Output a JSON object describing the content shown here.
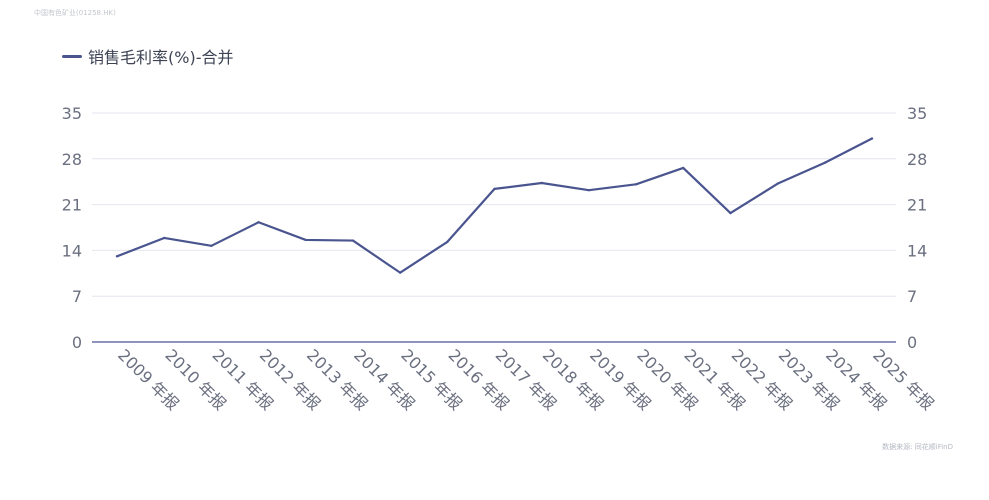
{
  "watermark_top": "中国有色矿业(01258.HK)",
  "watermark_bottom": "数据来源: 同花顺iFinD",
  "chart_data": {
    "type": "line",
    "legend_position": "top-left",
    "grid": true,
    "colors": {
      "line": "#4a5590",
      "grid": "#e3e6f0",
      "axis": "#4a5590"
    },
    "categories": [
      "2009 年报",
      "2010 年报",
      "2011 年报",
      "2012 年报",
      "2013 年报",
      "2014 年报",
      "2015 年报",
      "2016 年报",
      "2017 年报",
      "2018 年报",
      "2019 年报",
      "2020 年报",
      "2021 年报",
      "2022 年报",
      "2023 年报",
      "2024 年报",
      "2025 年报"
    ],
    "series": [
      {
        "name": "销售毛利率(%)-合并",
        "values": [
          13.1,
          15.9,
          14.7,
          18.3,
          15.6,
          15.5,
          10.6,
          15.3,
          23.4,
          24.3,
          23.2,
          24.1,
          26.6,
          19.7,
          24.2,
          27.4,
          31.1
        ]
      }
    ],
    "ylim": [
      0,
      35
    ],
    "yticks": [
      "0",
      "7",
      "14",
      "21",
      "28",
      "35"
    ]
  }
}
